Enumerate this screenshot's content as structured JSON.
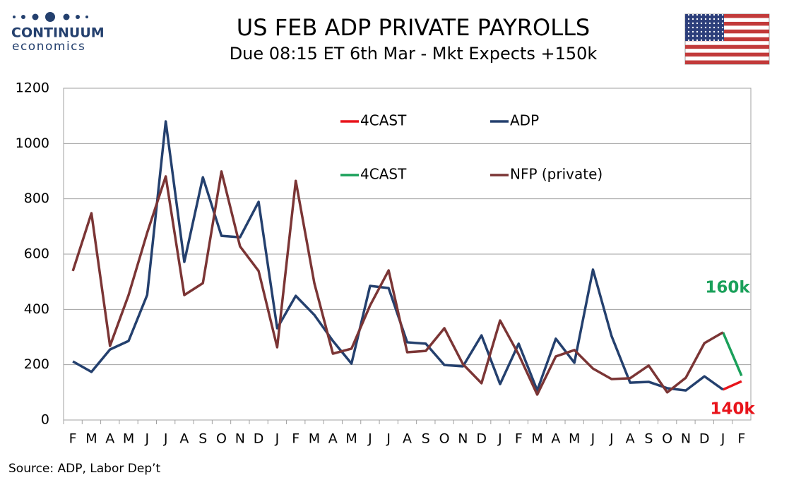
{
  "logo": {
    "name": "CONTINUUM",
    "tagline": "economics"
  },
  "chart_data": {
    "type": "line",
    "title": "US FEB ADP PRIVATE PAYROLLS",
    "subtitle": "Due 08:15 ET 6th Mar - Mkt Expects +150k",
    "source": "Source: ADP, Labor Dep’t",
    "categories": [
      "F",
      "M",
      "A",
      "M",
      "J",
      "J",
      "A",
      "S",
      "O",
      "N",
      "D",
      "J",
      "F",
      "M",
      "A",
      "M",
      "J",
      "J",
      "A",
      "S",
      "O",
      "N",
      "D",
      "J",
      "F",
      "M",
      "A",
      "M",
      "J",
      "J",
      "A",
      "S",
      "O",
      "N",
      "D",
      "J",
      "F"
    ],
    "series": [
      {
        "name": "4CAST",
        "color": "#e8141b",
        "values": [
          null,
          null,
          null,
          null,
          null,
          null,
          null,
          null,
          null,
          null,
          null,
          null,
          null,
          null,
          null,
          null,
          null,
          null,
          null,
          null,
          null,
          null,
          null,
          null,
          null,
          null,
          null,
          null,
          null,
          null,
          null,
          null,
          null,
          null,
          null,
          110,
          140
        ]
      },
      {
        "name": "ADP",
        "color": "#24406e",
        "values": [
          212,
          174,
          255,
          286,
          452,
          1080,
          572,
          878,
          666,
          661,
          789,
          332,
          449,
          380,
          286,
          204,
          485,
          477,
          281,
          276,
          199,
          194,
          306,
          130,
          276,
          107,
          294,
          207,
          544,
          304,
          135,
          138,
          115,
          107,
          158,
          110,
          null
        ]
      },
      {
        "name": "4CAST",
        "color": "#1aa05a",
        "values": [
          null,
          null,
          null,
          null,
          null,
          null,
          null,
          null,
          null,
          null,
          null,
          null,
          null,
          null,
          null,
          null,
          null,
          null,
          null,
          null,
          null,
          null,
          null,
          null,
          null,
          null,
          null,
          null,
          null,
          null,
          null,
          null,
          null,
          null,
          null,
          317,
          160
        ]
      },
      {
        "name": "NFP (private)",
        "color": "#7b3535",
        "values": [
          539,
          748,
          268,
          452,
          677,
          881,
          452,
          495,
          899,
          628,
          539,
          263,
          865,
          495,
          240,
          258,
          414,
          541,
          245,
          250,
          332,
          202,
          133,
          360,
          237,
          92,
          230,
          253,
          186,
          148,
          151,
          197,
          100,
          153,
          278,
          317,
          null
        ]
      }
    ],
    "annotations": [
      {
        "text": "160k",
        "color": "#1aa05a"
      },
      {
        "text": "140k",
        "color": "#e8141b"
      }
    ],
    "ylim": [
      0,
      1200
    ],
    "yticks": [
      0,
      200,
      400,
      600,
      800,
      1000,
      1200
    ],
    "grid": true
  }
}
